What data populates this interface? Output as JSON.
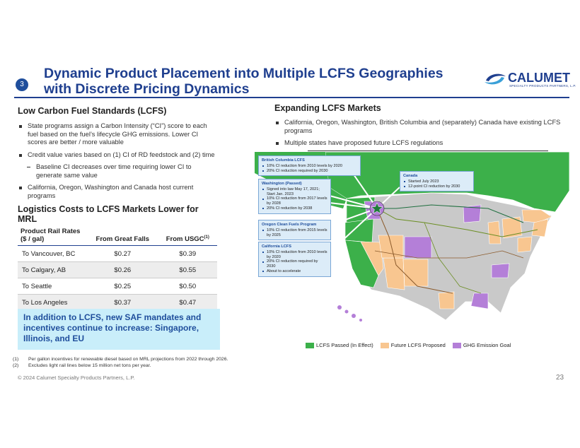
{
  "header": {
    "slide_number": "3",
    "title_line1": "Dynamic Product Placement into Multiple LCFS Geographies",
    "title_line2": "with Discrete Pricing Dynamics",
    "logo": "CALUMET",
    "logo_subtitle": "SPECIALTY PRODUCTS PARTNERS, L.P."
  },
  "left": {
    "heading": "Low Carbon Fuel Standards (LCFS)",
    "bullets": [
      {
        "text": "State programs assign a Carbon Intensity (“CI”) score to each fuel based on the fuel’s lifecycle GHG emissions. Lower CI scores are better / more valuable"
      },
      {
        "text": "Credit value varies based on (1) CI of RD feedstock and (2) time",
        "sub_bullets": [
          "Baseline CI decreases over time requiring lower CI to generate same value"
        ]
      },
      {
        "text": "California, Oregon, Washington and Canada host current programs"
      }
    ]
  },
  "table": {
    "title": "Logistics Costs to LCFS Markets Lower for MRL",
    "columns": [
      "Product Rail Rates ($ / gal)",
      "From Great Falls",
      "From USGC"
    ],
    "column_superscript": "(1)",
    "rows": [
      [
        "To Vancouver, BC",
        "$0.27",
        "$0.39"
      ],
      [
        "To Calgary, AB",
        "$0.26",
        "$0.55"
      ],
      [
        "To Seattle",
        "$0.25",
        "$0.50"
      ],
      [
        "To Los Angeles",
        "$0.37",
        "$0.47"
      ]
    ]
  },
  "callout": "In addition to LCFS, new SAF mandates and incentives continue to increase: Singapore, Illinois, and EU",
  "footnotes": [
    {
      "marker": "(1)",
      "text": "Per gallon incentives for renewable diesel based on MRL projections from 2022 through 2026."
    },
    {
      "marker": "(2)",
      "text": "Excludes light rail lines below 15 million net tons per year."
    }
  ],
  "copyright": "© 2024 Calumet Specialty Products Partners, L.P.",
  "page_number": "23",
  "right": {
    "heading": "Expanding LCFS Markets",
    "bullets": [
      "California, Oregon, Washington, British Columbia and (separately) Canada have existing LCFS programs",
      "Multiple states have proposed future LCFS regulations"
    ]
  },
  "map": {
    "boxes": [
      {
        "title": "British Columbia LCFS",
        "bullets": [
          "10% CI reduction from 2010 levels by 2020",
          "20% CI reduction required by 2030"
        ]
      },
      {
        "title": "Canada",
        "bullets": [
          "Started July 2023",
          "12-point CI reduction by 2030"
        ]
      },
      {
        "title": "Washington (Passed)",
        "bullets": [
          "Signed into law May 17, 2021; Start Jan. 2023",
          "10% CI reduction from 2017 levels by 2028",
          "20% CI reduction by 2038"
        ]
      },
      {
        "title": "Oregon Clean Fuels Program",
        "bullets": [
          "10% CI reduction from 2015 levels by 2025"
        ]
      },
      {
        "title": "California LCFS",
        "bullets": [
          "10% CI reduction from 2010 levels by 2020",
          "20% CI reduction required by 2030",
          "About to accelerate"
        ]
      }
    ],
    "legend": [
      {
        "label": "LCFS Passed (In Effect)",
        "color": "#3cb04a"
      },
      {
        "label": "Future LCFS Proposed",
        "color": "#f8c690"
      },
      {
        "label": "GHG Emission Goal",
        "color": "#b47fd8"
      }
    ]
  }
}
